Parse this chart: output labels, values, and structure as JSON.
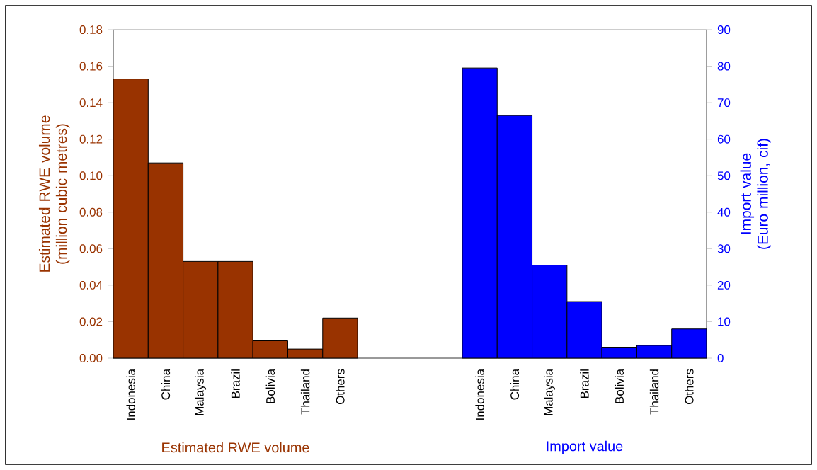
{
  "chart_data": {
    "type": "bar",
    "categories": [
      "Indonesia",
      "China",
      "Malaysia",
      "Brazil",
      "Bolivia",
      "Thailand",
      "Others",
      null,
      null,
      null,
      "Indonesia",
      "China",
      "Malaysia",
      "Brazil",
      "Bolivia",
      "Thailand",
      "Others"
    ],
    "series": [
      {
        "name": "Estimated RWE volume",
        "color": "#993300",
        "values": [
          0.153,
          0.107,
          0.053,
          0.053,
          0.0095,
          0.005,
          0.022,
          null,
          null,
          null,
          null,
          null,
          null,
          null,
          null,
          null,
          null
        ]
      },
      {
        "name": "Import value",
        "color": "#0000ff",
        "axis": "y2",
        "values": [
          null,
          null,
          null,
          null,
          null,
          null,
          null,
          null,
          null,
          null,
          79.5,
          66.5,
          25.5,
          15.5,
          3,
          3.5,
          8
        ]
      }
    ],
    "ylabel": "Estimated RWE volume (million cubic metres)",
    "y2label": "Import value (Euro million, cif)",
    "ylim": [
      0,
      0.18
    ],
    "yticks": [
      {
        "value": 0,
        "label": "0.00"
      },
      0.02,
      0.04,
      0.06,
      0.08,
      {
        "value": 0.1,
        "label": "0.10"
      },
      0.12,
      0.14,
      0.16,
      0.18
    ],
    "y2lim": [
      0,
      90
    ],
    "y2ticks": [
      0,
      10,
      20,
      30,
      40,
      50,
      60,
      70,
      80,
      90
    ],
    "grid": false
  }
}
